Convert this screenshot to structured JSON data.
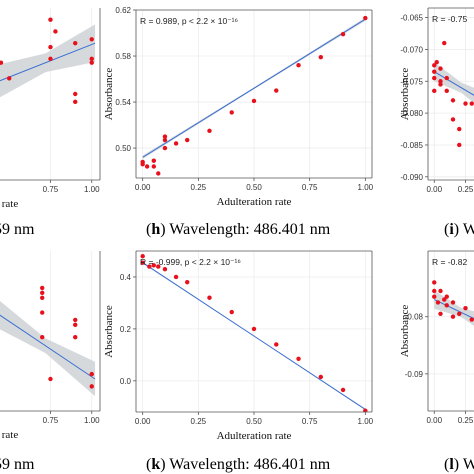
{
  "colors": {
    "point": "#e8101c",
    "fit": "#3b6fd0",
    "band": "#cfd2d6",
    "grid": "#ececec",
    "frame": "#555555"
  },
  "captions": [
    {
      "letter": "",
      "text": "59 nm"
    },
    {
      "letter": "h",
      "text": "Wavelength: 486.401 nm"
    },
    {
      "letter": "i",
      "text": "W"
    },
    {
      "letter": "",
      "text": "59 nm"
    },
    {
      "letter": "k",
      "text": "Wavelength: 486.401 nm"
    },
    {
      "letter": "l",
      "text": "W"
    }
  ],
  "chart_data": [
    {
      "panel": "top-left",
      "type": "scatter",
      "xlabel": "rate",
      "ylabel": "",
      "x_ticks": [
        "0.75",
        "1.00"
      ],
      "y_ticks": [],
      "xlim": [
        0.42,
        1.05
      ],
      "ylim": [
        0.4,
        0.62
      ],
      "fit": {
        "x0": 0.42,
        "y0": 0.525,
        "x1": 1.02,
        "y1": 0.575
      },
      "band": [
        0.022,
        0.012,
        0.024
      ],
      "points": [
        [
          0.45,
          0.55
        ],
        [
          0.5,
          0.53
        ],
        [
          0.75,
          0.605
        ],
        [
          0.75,
          0.57
        ],
        [
          0.75,
          0.555
        ],
        [
          0.78,
          0.59
        ],
        [
          0.9,
          0.51
        ],
        [
          0.9,
          0.5
        ],
        [
          0.9,
          0.575
        ],
        [
          1.0,
          0.58
        ],
        [
          1.0,
          0.555
        ],
        [
          1.0,
          0.55
        ]
      ]
    },
    {
      "panel": "top-middle",
      "type": "scatter",
      "annotation": "R = 0.989, p < 2.2 × 10⁻¹⁶",
      "xlabel": "Adulteration rate",
      "ylabel": "Absorbance",
      "x_ticks": [
        "0.00",
        "0.25",
        "0.50",
        "0.75",
        "1.00"
      ],
      "y_ticks": [
        "0.50",
        "0.54",
        "0.58",
        "0.62"
      ],
      "xlim": [
        -0.03,
        1.03
      ],
      "ylim": [
        0.474,
        0.62
      ],
      "fit": {
        "x0": 0.0,
        "y0": 0.492,
        "x1": 1.0,
        "y1": 0.612
      },
      "band": [
        0.0015,
        0.0008,
        0.0015
      ],
      "points": [
        [
          0.0,
          0.488
        ],
        [
          0.0,
          0.486
        ],
        [
          0.02,
          0.484
        ],
        [
          0.05,
          0.489
        ],
        [
          0.05,
          0.484
        ],
        [
          0.07,
          0.478
        ],
        [
          0.1,
          0.5
        ],
        [
          0.1,
          0.507
        ],
        [
          0.1,
          0.51
        ],
        [
          0.15,
          0.504
        ],
        [
          0.2,
          0.507
        ],
        [
          0.3,
          0.515
        ],
        [
          0.4,
          0.531
        ],
        [
          0.5,
          0.541
        ],
        [
          0.6,
          0.55
        ],
        [
          0.7,
          0.572
        ],
        [
          0.8,
          0.579
        ],
        [
          0.9,
          0.599
        ],
        [
          1.0,
          0.613
        ]
      ]
    },
    {
      "panel": "top-right",
      "type": "scatter",
      "annotation": "R = -0.75",
      "xlabel": "",
      "ylabel": "Absorbance",
      "x_ticks": [
        "0.00",
        "0.25"
      ],
      "y_ticks": [
        "-0.065",
        "-0.070",
        "-0.075",
        "-0.080",
        "-0.085",
        "-0.090"
      ],
      "xlim": [
        -0.05,
        0.43
      ],
      "ylim": [
        -0.0905,
        -0.0635
      ],
      "fit": {
        "x0": 0.0,
        "y0": -0.0735,
        "x1": 0.43,
        "y1": -0.0785
      },
      "band": [
        0.0015,
        0.0008,
        0.0016
      ],
      "points": [
        [
          0.0,
          -0.0725
        ],
        [
          0.0,
          -0.0735
        ],
        [
          0.0,
          -0.0745
        ],
        [
          0.0,
          -0.0765
        ],
        [
          0.02,
          -0.072
        ],
        [
          0.05,
          -0.073
        ],
        [
          0.05,
          -0.075
        ],
        [
          0.05,
          -0.0755
        ],
        [
          0.08,
          -0.069
        ],
        [
          0.1,
          -0.0745
        ],
        [
          0.1,
          -0.0765
        ],
        [
          0.15,
          -0.078
        ],
        [
          0.15,
          -0.081
        ],
        [
          0.2,
          -0.0825
        ],
        [
          0.2,
          -0.085
        ],
        [
          0.25,
          -0.0785
        ],
        [
          0.3,
          -0.0785
        ],
        [
          0.35,
          -0.076
        ],
        [
          0.4,
          -0.0785
        ]
      ]
    },
    {
      "panel": "bottom-left",
      "type": "scatter",
      "xlabel": "rate",
      "ylabel": "",
      "x_ticks": [
        "0.75",
        "1.00"
      ],
      "y_ticks": [],
      "xlim": [
        0.42,
        1.05
      ],
      "ylim": [
        -0.15,
        0.5
      ],
      "fit": {
        "x0": 0.42,
        "y0": 0.25,
        "x1": 1.02,
        "y1": -0.02
      },
      "band": [
        0.06,
        0.03,
        0.07
      ],
      "points": [
        [
          0.7,
          0.35
        ],
        [
          0.7,
          0.33
        ],
        [
          0.7,
          0.31
        ],
        [
          0.7,
          0.25
        ],
        [
          0.7,
          0.15
        ],
        [
          0.75,
          -0.02
        ],
        [
          0.9,
          0.22
        ],
        [
          0.9,
          0.2
        ],
        [
          0.9,
          0.15
        ],
        [
          1.0,
          0.0
        ],
        [
          1.0,
          -0.05
        ]
      ]
    },
    {
      "panel": "bottom-middle",
      "type": "scatter",
      "annotation": "R = -0.999, p < 2.2 × 10⁻¹⁶",
      "xlabel": "Adulteration rate",
      "ylabel": "Absorbance",
      "x_ticks": [
        "0.00",
        "0.25",
        "0.50",
        "0.75",
        "1.00"
      ],
      "y_ticks": [
        "0.0",
        "0.2",
        "0.4"
      ],
      "xlim": [
        -0.03,
        1.03
      ],
      "ylim": [
        -0.12,
        0.5
      ],
      "fit": {
        "x0": 0.0,
        "y0": 0.455,
        "x1": 1.0,
        "y1": -0.11
      },
      "band": [
        0.003,
        0.0015,
        0.003
      ],
      "points": [
        [
          0.0,
          0.48
        ],
        [
          0.0,
          0.455
        ],
        [
          0.03,
          0.44
        ],
        [
          0.05,
          0.445
        ],
        [
          0.07,
          0.44
        ],
        [
          0.1,
          0.43
        ],
        [
          0.15,
          0.4
        ],
        [
          0.2,
          0.38
        ],
        [
          0.3,
          0.32
        ],
        [
          0.4,
          0.265
        ],
        [
          0.5,
          0.2
        ],
        [
          0.6,
          0.14
        ],
        [
          0.7,
          0.085
        ],
        [
          0.8,
          0.015
        ],
        [
          0.9,
          -0.035
        ],
        [
          1.0,
          -0.115
        ]
      ]
    },
    {
      "panel": "bottom-right",
      "type": "scatter",
      "annotation": "R = -0.82",
      "xlabel": "",
      "ylabel": "Absorbance",
      "x_ticks": [
        "0.00",
        "0.25"
      ],
      "y_ticks": [
        "-0.08",
        "-0.09"
      ],
      "xlim": [
        -0.05,
        0.43
      ],
      "ylim": [
        -0.0965,
        -0.0685
      ],
      "fit": {
        "x0": 0.0,
        "y0": -0.077,
        "x1": 0.43,
        "y1": -0.0815
      },
      "band": [
        0.0016,
        0.0008,
        0.0018
      ],
      "points": [
        [
          0.0,
          -0.0755
        ],
        [
          0.0,
          -0.074
        ],
        [
          0.0,
          -0.0765
        ],
        [
          0.03,
          -0.0775
        ],
        [
          0.05,
          -0.0755
        ],
        [
          0.05,
          -0.0795
        ],
        [
          0.08,
          -0.077
        ],
        [
          0.1,
          -0.078
        ],
        [
          0.1,
          -0.0765
        ],
        [
          0.15,
          -0.0775
        ],
        [
          0.15,
          -0.08
        ],
        [
          0.2,
          -0.0795
        ],
        [
          0.25,
          -0.0785
        ],
        [
          0.3,
          -0.0805
        ],
        [
          0.35,
          -0.0815
        ],
        [
          0.4,
          -0.082
        ]
      ]
    }
  ]
}
